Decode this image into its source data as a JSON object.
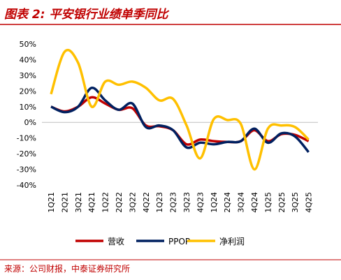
{
  "chart_data": {
    "type": "line",
    "title": "图表 2: 平安银行业绩单季同比",
    "source": "来源：公司财报，中泰证券研究所",
    "categories": [
      "1Q21",
      "2Q21",
      "3Q21",
      "4Q21",
      "1Q22",
      "2Q22",
      "3Q22",
      "4Q22",
      "1Q23",
      "2Q23",
      "3Q23",
      "4Q23",
      "1Q24",
      "2Q24",
      "3Q24",
      "4Q24",
      "1Q25",
      "2Q25",
      "3Q25",
      "4Q25"
    ],
    "series": [
      {
        "name": "营收",
        "color": "#c00000",
        "values": [
          10,
          7,
          10,
          16,
          12,
          8,
          9,
          -2,
          -2.5,
          -5,
          -14,
          -11,
          -12,
          -12.5,
          -12,
          -5,
          -12,
          -7.5,
          -8,
          -12
        ]
      },
      {
        "name": "PPOP",
        "color": "#002060",
        "values": [
          10,
          6.5,
          10,
          22,
          14,
          8,
          12,
          -3,
          -2,
          -5,
          -16,
          -13,
          -14,
          -12.5,
          -12,
          -4,
          -13,
          -7,
          -9,
          -19
        ]
      },
      {
        "name": "净利润",
        "color": "#ffc000",
        "values": [
          18,
          45,
          38,
          10,
          26,
          24,
          26,
          22,
          14,
          15,
          -2,
          -23,
          2,
          1.5,
          -1,
          -30,
          -4,
          -2,
          -3,
          -11
        ]
      }
    ],
    "ylim": [
      -40,
      50
    ],
    "yticks": [
      {
        "value": -40,
        "label": "-40%"
      },
      {
        "value": -30,
        "label": "-30%"
      },
      {
        "value": -20,
        "label": "-20%"
      },
      {
        "value": -10,
        "label": "-10%"
      },
      {
        "value": 0,
        "label": "0%"
      },
      {
        "value": 10,
        "label": "10%"
      },
      {
        "value": 20,
        "label": "20%"
      },
      {
        "value": 30,
        "label": "30%"
      },
      {
        "value": 40,
        "label": "40%"
      },
      {
        "value": 50,
        "label": "50%"
      }
    ]
  }
}
